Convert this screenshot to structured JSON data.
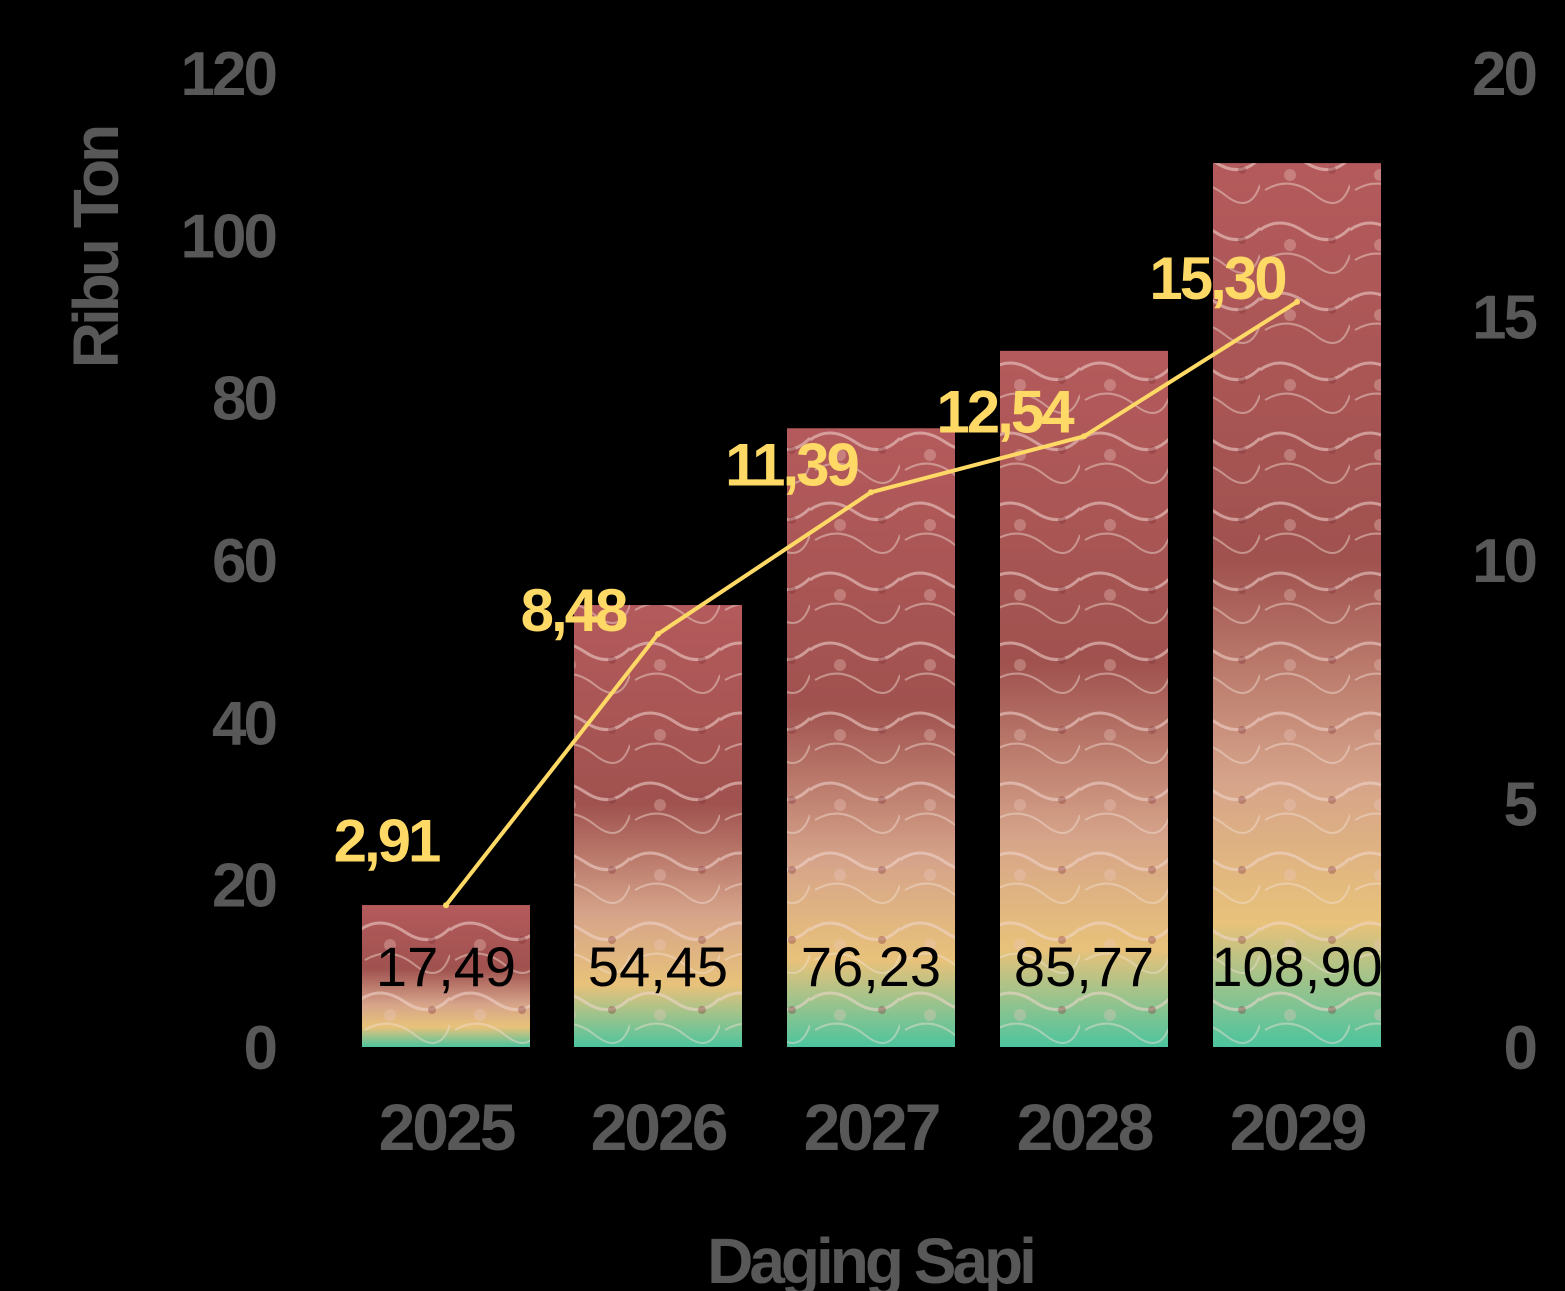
{
  "chart_data": {
    "type": "bar",
    "categories": [
      "2025",
      "2026",
      "2027",
      "2028",
      "2029"
    ],
    "series": [
      {
        "type": "bar",
        "axis": "left",
        "values": [
          17.49,
          54.45,
          76.23,
          85.77,
          108.9
        ],
        "labels": [
          "17,49",
          "54,45",
          "76,23",
          "85,77",
          "108,90"
        ]
      },
      {
        "type": "line",
        "axis": "right",
        "color": "#ffd966",
        "values": [
          2.91,
          8.48,
          11.39,
          12.54,
          15.3
        ],
        "labels": [
          "2,91",
          "8,48",
          "11,39",
          "12,54",
          "15,30"
        ]
      }
    ],
    "ylabel": "Ribu Ton",
    "xlabel": "Daging Sapi",
    "ylim": [
      0,
      120
    ],
    "yticks": [
      "0",
      "20",
      "40",
      "60",
      "80",
      "100",
      "120"
    ],
    "y2lim": [
      0,
      20
    ],
    "y2ticks": [
      "0",
      "5",
      "10",
      "15",
      "20"
    ],
    "grid": false,
    "legend": "none",
    "background": "#000000",
    "tick_color": "#585858"
  }
}
